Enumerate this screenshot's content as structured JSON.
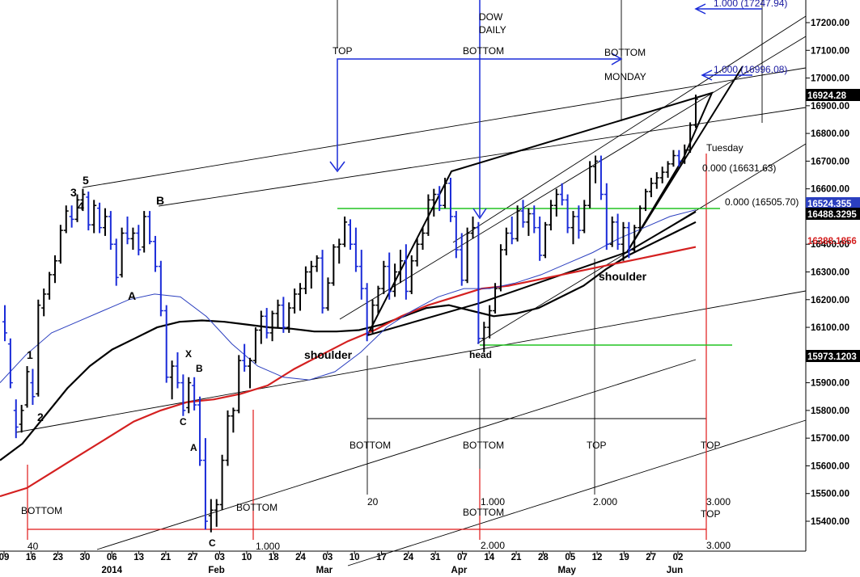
{
  "chart_data": {
    "type": "bar",
    "title": "DOW DAILY",
    "title_lines": [
      "DOW",
      "DAILY"
    ],
    "ylim": [
      15350,
      17300
    ],
    "y_ticks": [
      15400,
      15500,
      15600,
      15700,
      15800,
      15900,
      16000,
      16100,
      16200,
      16300,
      16400,
      16500,
      16600,
      16700,
      16800,
      16900,
      17000,
      17100,
      17200
    ],
    "y_tick_labels": [
      "15400.00",
      "15500.00",
      "15600.00",
      "15700.00",
      "15800.00",
      "15900.00",
      "16000.00",
      "16100.00",
      "16200.00",
      "16300.00",
      "16400.00",
      "16500.00",
      "16600.00",
      "16700.00",
      "16800.00",
      "16900.00",
      "17000.00",
      "17100.00",
      "17200.00"
    ],
    "x_ticks": [
      "09",
      "16",
      "23",
      "30",
      "06",
      "13",
      "21",
      "27",
      "03",
      "10",
      "18",
      "24",
      "03",
      "10",
      "17",
      "24",
      "31",
      "07",
      "14",
      "21",
      "28",
      "05",
      "12",
      "19",
      "27",
      "02"
    ],
    "month_labels": [
      "2014",
      "Feb",
      "Mar",
      "Apr",
      "May",
      "Jun"
    ],
    "price_badges": [
      {
        "label": "16924.28",
        "value": 16924.28,
        "color": "#000000"
      },
      {
        "label": "16524.355",
        "value": 16524.355,
        "color": "#2b3fbf"
      },
      {
        "label": "16488.3295",
        "value": 16488.33,
        "color": "#000000"
      },
      {
        "label": "16388.1856",
        "value": 16388.19,
        "color": "#d42020"
      },
      {
        "label": "15973.1203",
        "value": 15973.12,
        "color": "#000000"
      }
    ],
    "fib_labels": [
      {
        "text": "1.000 (17247.94)",
        "color": "#1a1aa0"
      },
      {
        "text": "1.000 (16996.08)",
        "color": "#1a1aa0"
      },
      {
        "text": "0.000 (16631.63)",
        "color": "#000000"
      },
      {
        "text": "0.000 (16505.70)",
        "color": "#000000"
      }
    ],
    "annotations": {
      "wave_labels": [
        "1",
        "2",
        "3",
        "4",
        "5",
        "A",
        "B",
        "X",
        "B",
        "C",
        "A",
        "C"
      ],
      "pattern_labels": [
        "shoulder",
        "head",
        "shoulder"
      ],
      "top_bottom_labels": [
        "TOP",
        "BOTTOM",
        "BOTTOM",
        "MONDAY",
        "Tuesday"
      ],
      "bottom_row_labels": [
        "BOTTOM",
        "BOTTOM",
        "BOTTOM",
        "BOTTOM",
        "TOP",
        "TOP",
        "BOTTOM",
        "TOP"
      ],
      "time_counts": [
        "40",
        "1.000",
        "20",
        "1.000",
        "2.000",
        "2.000",
        "3.000",
        "3.000"
      ]
    },
    "series": [
      {
        "name": "",
        "kind": "ohlc",
        "color_up": "#000000",
        "color_down": "#1a2bd8",
        "values": [
          {
            "o": 16120,
            "h": 16180,
            "l": 16050,
            "c": 16080
          },
          {
            "o": 16040,
            "h": 16060,
            "l": 15880,
            "c": 15900
          },
          {
            "o": 15800,
            "h": 15840,
            "l": 15700,
            "c": 15740
          },
          {
            "o": 15750,
            "h": 15820,
            "l": 15720,
            "c": 15800
          },
          {
            "o": 15820,
            "h": 15960,
            "l": 15810,
            "c": 15940
          },
          {
            "o": 15900,
            "h": 15950,
            "l": 15820,
            "c": 15850
          },
          {
            "o": 15860,
            "h": 16200,
            "l": 15850,
            "c": 16180
          },
          {
            "o": 16170,
            "h": 16240,
            "l": 16140,
            "c": 16220
          },
          {
            "o": 16220,
            "h": 16300,
            "l": 16200,
            "c": 16290
          },
          {
            "o": 16290,
            "h": 16360,
            "l": 16260,
            "c": 16340
          },
          {
            "o": 16340,
            "h": 16470,
            "l": 16330,
            "c": 16450
          },
          {
            "o": 16450,
            "h": 16540,
            "l": 16440,
            "c": 16520
          },
          {
            "o": 16500,
            "h": 16540,
            "l": 16460,
            "c": 16490
          },
          {
            "o": 16490,
            "h": 16580,
            "l": 16480,
            "c": 16560
          },
          {
            "o": 16560,
            "h": 16600,
            "l": 16520,
            "c": 16580
          },
          {
            "o": 16570,
            "h": 16590,
            "l": 16450,
            "c": 16470
          },
          {
            "o": 16470,
            "h": 16560,
            "l": 16440,
            "c": 16540
          },
          {
            "o": 16530,
            "h": 16550,
            "l": 16440,
            "c": 16460
          },
          {
            "o": 16460,
            "h": 16530,
            "l": 16430,
            "c": 16500
          },
          {
            "o": 16500,
            "h": 16520,
            "l": 16380,
            "c": 16400
          },
          {
            "o": 16400,
            "h": 16420,
            "l": 16250,
            "c": 16280
          },
          {
            "o": 16290,
            "h": 16460,
            "l": 16280,
            "c": 16440
          },
          {
            "o": 16440,
            "h": 16500,
            "l": 16400,
            "c": 16420
          },
          {
            "o": 16420,
            "h": 16460,
            "l": 16380,
            "c": 16440
          },
          {
            "o": 16440,
            "h": 16470,
            "l": 16360,
            "c": 16380
          },
          {
            "o": 16390,
            "h": 16520,
            "l": 16370,
            "c": 16500
          },
          {
            "o": 16500,
            "h": 16520,
            "l": 16400,
            "c": 16410
          },
          {
            "o": 16410,
            "h": 16430,
            "l": 16300,
            "c": 16320
          },
          {
            "o": 16320,
            "h": 16340,
            "l": 16140,
            "c": 16160
          },
          {
            "o": 16160,
            "h": 16180,
            "l": 15900,
            "c": 15920
          },
          {
            "o": 15920,
            "h": 15980,
            "l": 15840,
            "c": 15960
          },
          {
            "o": 15960,
            "h": 16010,
            "l": 15880,
            "c": 15900
          },
          {
            "o": 15900,
            "h": 15930,
            "l": 15780,
            "c": 15800
          },
          {
            "o": 15810,
            "h": 15920,
            "l": 15790,
            "c": 15900
          },
          {
            "o": 15890,
            "h": 15920,
            "l": 15800,
            "c": 15820
          },
          {
            "o": 15820,
            "h": 15850,
            "l": 15600,
            "c": 15620
          },
          {
            "o": 15620,
            "h": 15700,
            "l": 15370,
            "c": 15400
          },
          {
            "o": 15420,
            "h": 15480,
            "l": 15360,
            "c": 15440
          },
          {
            "o": 15440,
            "h": 15480,
            "l": 15380,
            "c": 15460
          },
          {
            "o": 15460,
            "h": 15640,
            "l": 15440,
            "c": 15620
          },
          {
            "o": 15620,
            "h": 15800,
            "l": 15600,
            "c": 15780
          },
          {
            "o": 15780,
            "h": 15810,
            "l": 15720,
            "c": 15800
          },
          {
            "o": 15800,
            "h": 16000,
            "l": 15790,
            "c": 15980
          },
          {
            "o": 15980,
            "h": 16040,
            "l": 15940,
            "c": 15960
          },
          {
            "o": 15960,
            "h": 15990,
            "l": 15880,
            "c": 15980
          },
          {
            "o": 15980,
            "h": 16100,
            "l": 15970,
            "c": 16090
          },
          {
            "o": 16090,
            "h": 16160,
            "l": 16040,
            "c": 16140
          },
          {
            "o": 16140,
            "h": 16170,
            "l": 16060,
            "c": 16080
          },
          {
            "o": 16080,
            "h": 16160,
            "l": 16050,
            "c": 16150
          },
          {
            "o": 16150,
            "h": 16200,
            "l": 16100,
            "c": 16180
          },
          {
            "o": 16180,
            "h": 16210,
            "l": 16080,
            "c": 16100
          },
          {
            "o": 16100,
            "h": 16190,
            "l": 16080,
            "c": 16170
          },
          {
            "o": 16170,
            "h": 16240,
            "l": 16150,
            "c": 16220
          },
          {
            "o": 16220,
            "h": 16260,
            "l": 16160,
            "c": 16240
          },
          {
            "o": 16240,
            "h": 16320,
            "l": 16220,
            "c": 16300
          },
          {
            "o": 16300,
            "h": 16340,
            "l": 16240,
            "c": 16320
          },
          {
            "o": 16320,
            "h": 16360,
            "l": 16300,
            "c": 16350
          },
          {
            "o": 16350,
            "h": 16380,
            "l": 16150,
            "c": 16170
          },
          {
            "o": 16170,
            "h": 16280,
            "l": 16160,
            "c": 16260
          },
          {
            "o": 16260,
            "h": 16400,
            "l": 16250,
            "c": 16390
          },
          {
            "o": 16390,
            "h": 16420,
            "l": 16330,
            "c": 16400
          },
          {
            "o": 16400,
            "h": 16500,
            "l": 16390,
            "c": 16480
          },
          {
            "o": 16470,
            "h": 16490,
            "l": 16380,
            "c": 16400
          },
          {
            "o": 16400,
            "h": 16460,
            "l": 16300,
            "c": 16320
          },
          {
            "o": 16320,
            "h": 16380,
            "l": 16200,
            "c": 16240
          },
          {
            "o": 16240,
            "h": 16260,
            "l": 16050,
            "c": 16080
          },
          {
            "o": 16090,
            "h": 16200,
            "l": 16080,
            "c": 16180
          },
          {
            "o": 16180,
            "h": 16250,
            "l": 16150,
            "c": 16240
          },
          {
            "o": 16240,
            "h": 16340,
            "l": 16220,
            "c": 16320
          },
          {
            "o": 16320,
            "h": 16370,
            "l": 16200,
            "c": 16230
          },
          {
            "o": 16230,
            "h": 16330,
            "l": 16210,
            "c": 16300
          },
          {
            "o": 16300,
            "h": 16380,
            "l": 16260,
            "c": 16340
          },
          {
            "o": 16340,
            "h": 16400,
            "l": 16200,
            "c": 16230
          },
          {
            "o": 16230,
            "h": 16360,
            "l": 16220,
            "c": 16340
          },
          {
            "o": 16340,
            "h": 16420,
            "l": 16320,
            "c": 16400
          },
          {
            "o": 16400,
            "h": 16460,
            "l": 16380,
            "c": 16440
          },
          {
            "o": 16440,
            "h": 16580,
            "l": 16430,
            "c": 16560
          },
          {
            "o": 16560,
            "h": 16600,
            "l": 16500,
            "c": 16580
          },
          {
            "o": 16580,
            "h": 16610,
            "l": 16520,
            "c": 16540
          },
          {
            "o": 16540,
            "h": 16640,
            "l": 16530,
            "c": 16620
          },
          {
            "o": 16620,
            "h": 16640,
            "l": 16480,
            "c": 16500
          },
          {
            "o": 16500,
            "h": 16520,
            "l": 16350,
            "c": 16380
          },
          {
            "o": 16380,
            "h": 16440,
            "l": 16250,
            "c": 16270
          },
          {
            "o": 16270,
            "h": 16460,
            "l": 16260,
            "c": 16440
          },
          {
            "o": 16440,
            "h": 16500,
            "l": 16420,
            "c": 16460
          },
          {
            "o": 16460,
            "h": 16480,
            "l": 16040,
            "c": 16060
          },
          {
            "o": 16060,
            "h": 16120,
            "l": 16010,
            "c": 16100
          },
          {
            "o": 16100,
            "h": 16180,
            "l": 16060,
            "c": 16160
          },
          {
            "o": 16160,
            "h": 16260,
            "l": 16150,
            "c": 16240
          },
          {
            "o": 16240,
            "h": 16400,
            "l": 16230,
            "c": 16380
          },
          {
            "o": 16380,
            "h": 16460,
            "l": 16360,
            "c": 16440
          },
          {
            "o": 16440,
            "h": 16500,
            "l": 16400,
            "c": 16420
          },
          {
            "o": 16420,
            "h": 16540,
            "l": 16410,
            "c": 16520
          },
          {
            "o": 16520,
            "h": 16560,
            "l": 16460,
            "c": 16480
          },
          {
            "o": 16480,
            "h": 16530,
            "l": 16430,
            "c": 16510
          },
          {
            "o": 16510,
            "h": 16540,
            "l": 16440,
            "c": 16460
          },
          {
            "o": 16460,
            "h": 16500,
            "l": 16340,
            "c": 16360
          },
          {
            "o": 16360,
            "h": 16480,
            "l": 16350,
            "c": 16470
          },
          {
            "o": 16470,
            "h": 16560,
            "l": 16450,
            "c": 16540
          },
          {
            "o": 16540,
            "h": 16600,
            "l": 16500,
            "c": 16580
          },
          {
            "o": 16580,
            "h": 16620,
            "l": 16540,
            "c": 16560
          },
          {
            "o": 16560,
            "h": 16580,
            "l": 16440,
            "c": 16460
          },
          {
            "o": 16460,
            "h": 16520,
            "l": 16400,
            "c": 16500
          },
          {
            "o": 16500,
            "h": 16540,
            "l": 16420,
            "c": 16450
          },
          {
            "o": 16450,
            "h": 16560,
            "l": 16440,
            "c": 16540
          },
          {
            "o": 16540,
            "h": 16700,
            "l": 16530,
            "c": 16680
          },
          {
            "o": 16680,
            "h": 16720,
            "l": 16620,
            "c": 16700
          },
          {
            "o": 16700,
            "h": 16720,
            "l": 16560,
            "c": 16580
          },
          {
            "o": 16580,
            "h": 16620,
            "l": 16380,
            "c": 16400
          },
          {
            "o": 16400,
            "h": 16500,
            "l": 16390,
            "c": 16480
          },
          {
            "o": 16480,
            "h": 16510,
            "l": 16380,
            "c": 16400
          },
          {
            "o": 16400,
            "h": 16480,
            "l": 16340,
            "c": 16460
          },
          {
            "o": 16460,
            "h": 16480,
            "l": 16350,
            "c": 16380
          },
          {
            "o": 16380,
            "h": 16470,
            "l": 16370,
            "c": 16460
          },
          {
            "o": 16460,
            "h": 16540,
            "l": 16450,
            "c": 16530
          },
          {
            "o": 16530,
            "h": 16600,
            "l": 16520,
            "c": 16590
          },
          {
            "o": 16590,
            "h": 16640,
            "l": 16570,
            "c": 16620
          },
          {
            "o": 16620,
            "h": 16660,
            "l": 16600,
            "c": 16640
          },
          {
            "o": 16640,
            "h": 16680,
            "l": 16620,
            "c": 16660
          },
          {
            "o": 16660,
            "h": 16700,
            "l": 16640,
            "c": 16690
          },
          {
            "o": 16690,
            "h": 16740,
            "l": 16680,
            "c": 16720
          },
          {
            "o": 16720,
            "h": 16740,
            "l": 16680,
            "c": 16700
          },
          {
            "o": 16700,
            "h": 16760,
            "l": 16690,
            "c": 16740
          },
          {
            "o": 16740,
            "h": 16840,
            "l": 16730,
            "c": 16830
          },
          {
            "o": 16830,
            "h": 16940,
            "l": 16820,
            "c": 16924
          }
        ]
      },
      {
        "name": "",
        "kind": "line",
        "color": "#000000",
        "values": [
          15620,
          15680,
          15780,
          15880,
          15960,
          16020,
          16060,
          16100,
          16120,
          16125,
          16120,
          16110,
          16100,
          16095,
          16085,
          16085,
          16090,
          16110,
          16140,
          16170,
          16180,
          16160,
          16140,
          16150,
          16170,
          16210,
          16250,
          16310,
          16360,
          16400,
          16440,
          16480
        ]
      },
      {
        "name": "",
        "kind": "line",
        "color": "#d42020",
        "values": [
          15490,
          15520,
          15580,
          15640,
          15700,
          15760,
          15800,
          15830,
          15840,
          15860,
          15890,
          15950,
          16000,
          16050,
          16090,
          16140,
          16180,
          16210,
          16240,
          16250,
          16270,
          16290,
          16310,
          16330,
          16350,
          16370,
          16390
        ]
      },
      {
        "name": "",
        "kind": "line",
        "color": "#2b3fbf",
        "values": [
          15900,
          16000,
          16080,
          16120,
          16160,
          16200,
          16220,
          16210,
          16140,
          16040,
          15960,
          15920,
          15910,
          15940,
          16010,
          16100,
          16160,
          16210,
          16240,
          16240,
          16260,
          16290,
          16330,
          16370,
          16420,
          16460,
          16500,
          16524
        ]
      }
    ]
  }
}
